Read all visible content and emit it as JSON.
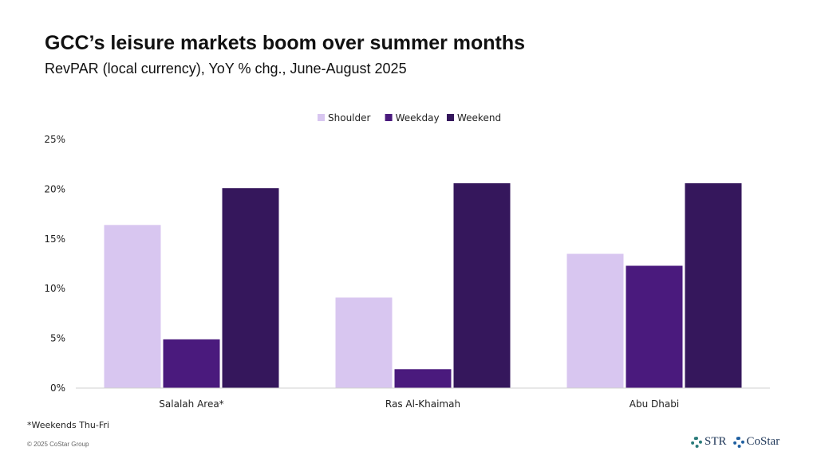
{
  "header": {
    "title": "GCC’s leisure markets boom over summer months",
    "subtitle": "RevPAR (local currency), YoY % chg., June-August 2025"
  },
  "footnote": "*Weekends Thu-Fri",
  "copyright": "© 2025 CoStar Group",
  "logos": {
    "str": "STR",
    "costar": "CoStar"
  },
  "chart_data": {
    "type": "bar",
    "title": "GCC’s leisure markets boom over summer months",
    "categories": [
      "Salalah Area*",
      "Ras Al-Khaimah",
      "Abu Dhabi"
    ],
    "series": [
      {
        "name": "Shoulder",
        "color": "#d8c6f0",
        "values": [
          16.4,
          9.1,
          13.5
        ]
      },
      {
        "name": "Weekday",
        "color": "#4a1a7d",
        "values": [
          4.9,
          1.9,
          12.3
        ]
      },
      {
        "name": "Weekend",
        "color": "#35175c",
        "values": [
          20.1,
          20.6,
          20.6
        ]
      }
    ],
    "yticks": [
      "0%",
      "5%",
      "10%",
      "15%",
      "20%",
      "25%"
    ],
    "ylim": [
      0,
      25
    ],
    "legend": "top-center",
    "grid": false
  }
}
